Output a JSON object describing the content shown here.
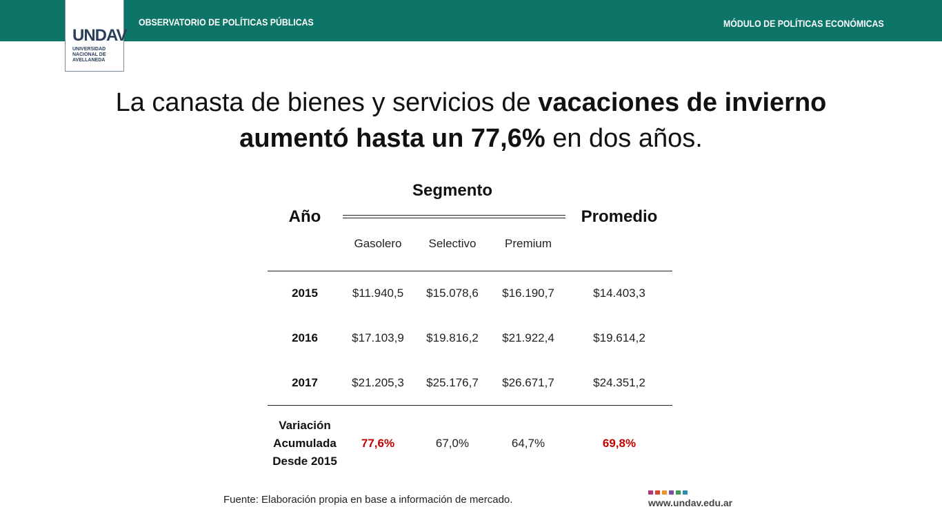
{
  "header": {
    "left": "OBSERVATORIO DE POLÍTICAS PÚBLICAS",
    "right": "MÓDULO DE POLÍTICAS ECONÓMICAS",
    "logo": {
      "mark": "UNDAV",
      "lines": [
        "UNIVERSIDAD",
        "NACIONAL DE",
        "AVELLANEDA"
      ]
    }
  },
  "title": {
    "lines": [
      [
        {
          "text": "La canasta de bienes y servicios de ",
          "bold": false
        },
        {
          "text": "vacaciones de invierno",
          "bold": true
        }
      ],
      [
        {
          "text": "aumentó hasta un 77,6%",
          "bold": true
        },
        {
          "text": " en dos años.",
          "bold": false
        }
      ]
    ]
  },
  "table": {
    "year_header": "Año",
    "segment_header": "Segmento",
    "average_header": "Promedio",
    "segments": [
      "Gasolero",
      "Selectivo",
      "Premium"
    ],
    "rows": [
      [
        "2015",
        "$11.940,5",
        "$15.078,6",
        "$16.190,7",
        "$14.403,3"
      ],
      [
        "2016",
        "$17.103,9",
        "$19.816,2",
        "$21.922,4",
        "$19.614,2"
      ],
      [
        "2017",
        "$21.205,3",
        "$25.176,7",
        "$26.671,7",
        "$24.351,2"
      ]
    ],
    "variation": {
      "label": [
        "Variación",
        "Acumulada",
        "Desde 2015"
      ],
      "cells": [
        {
          "text": "77,6%",
          "color": "#c00000",
          "bold": true
        },
        {
          "text": "67,0%",
          "color": "#222222",
          "bold": false
        },
        {
          "text": "64,7%",
          "color": "#222222",
          "bold": false
        },
        {
          "text": "69,8%",
          "color": "#c00000",
          "bold": true
        }
      ]
    }
  },
  "footer": {
    "source": "Fuente: Elaboración propia en base a información de mercado.",
    "url": "www.undav.edu.ar"
  }
}
